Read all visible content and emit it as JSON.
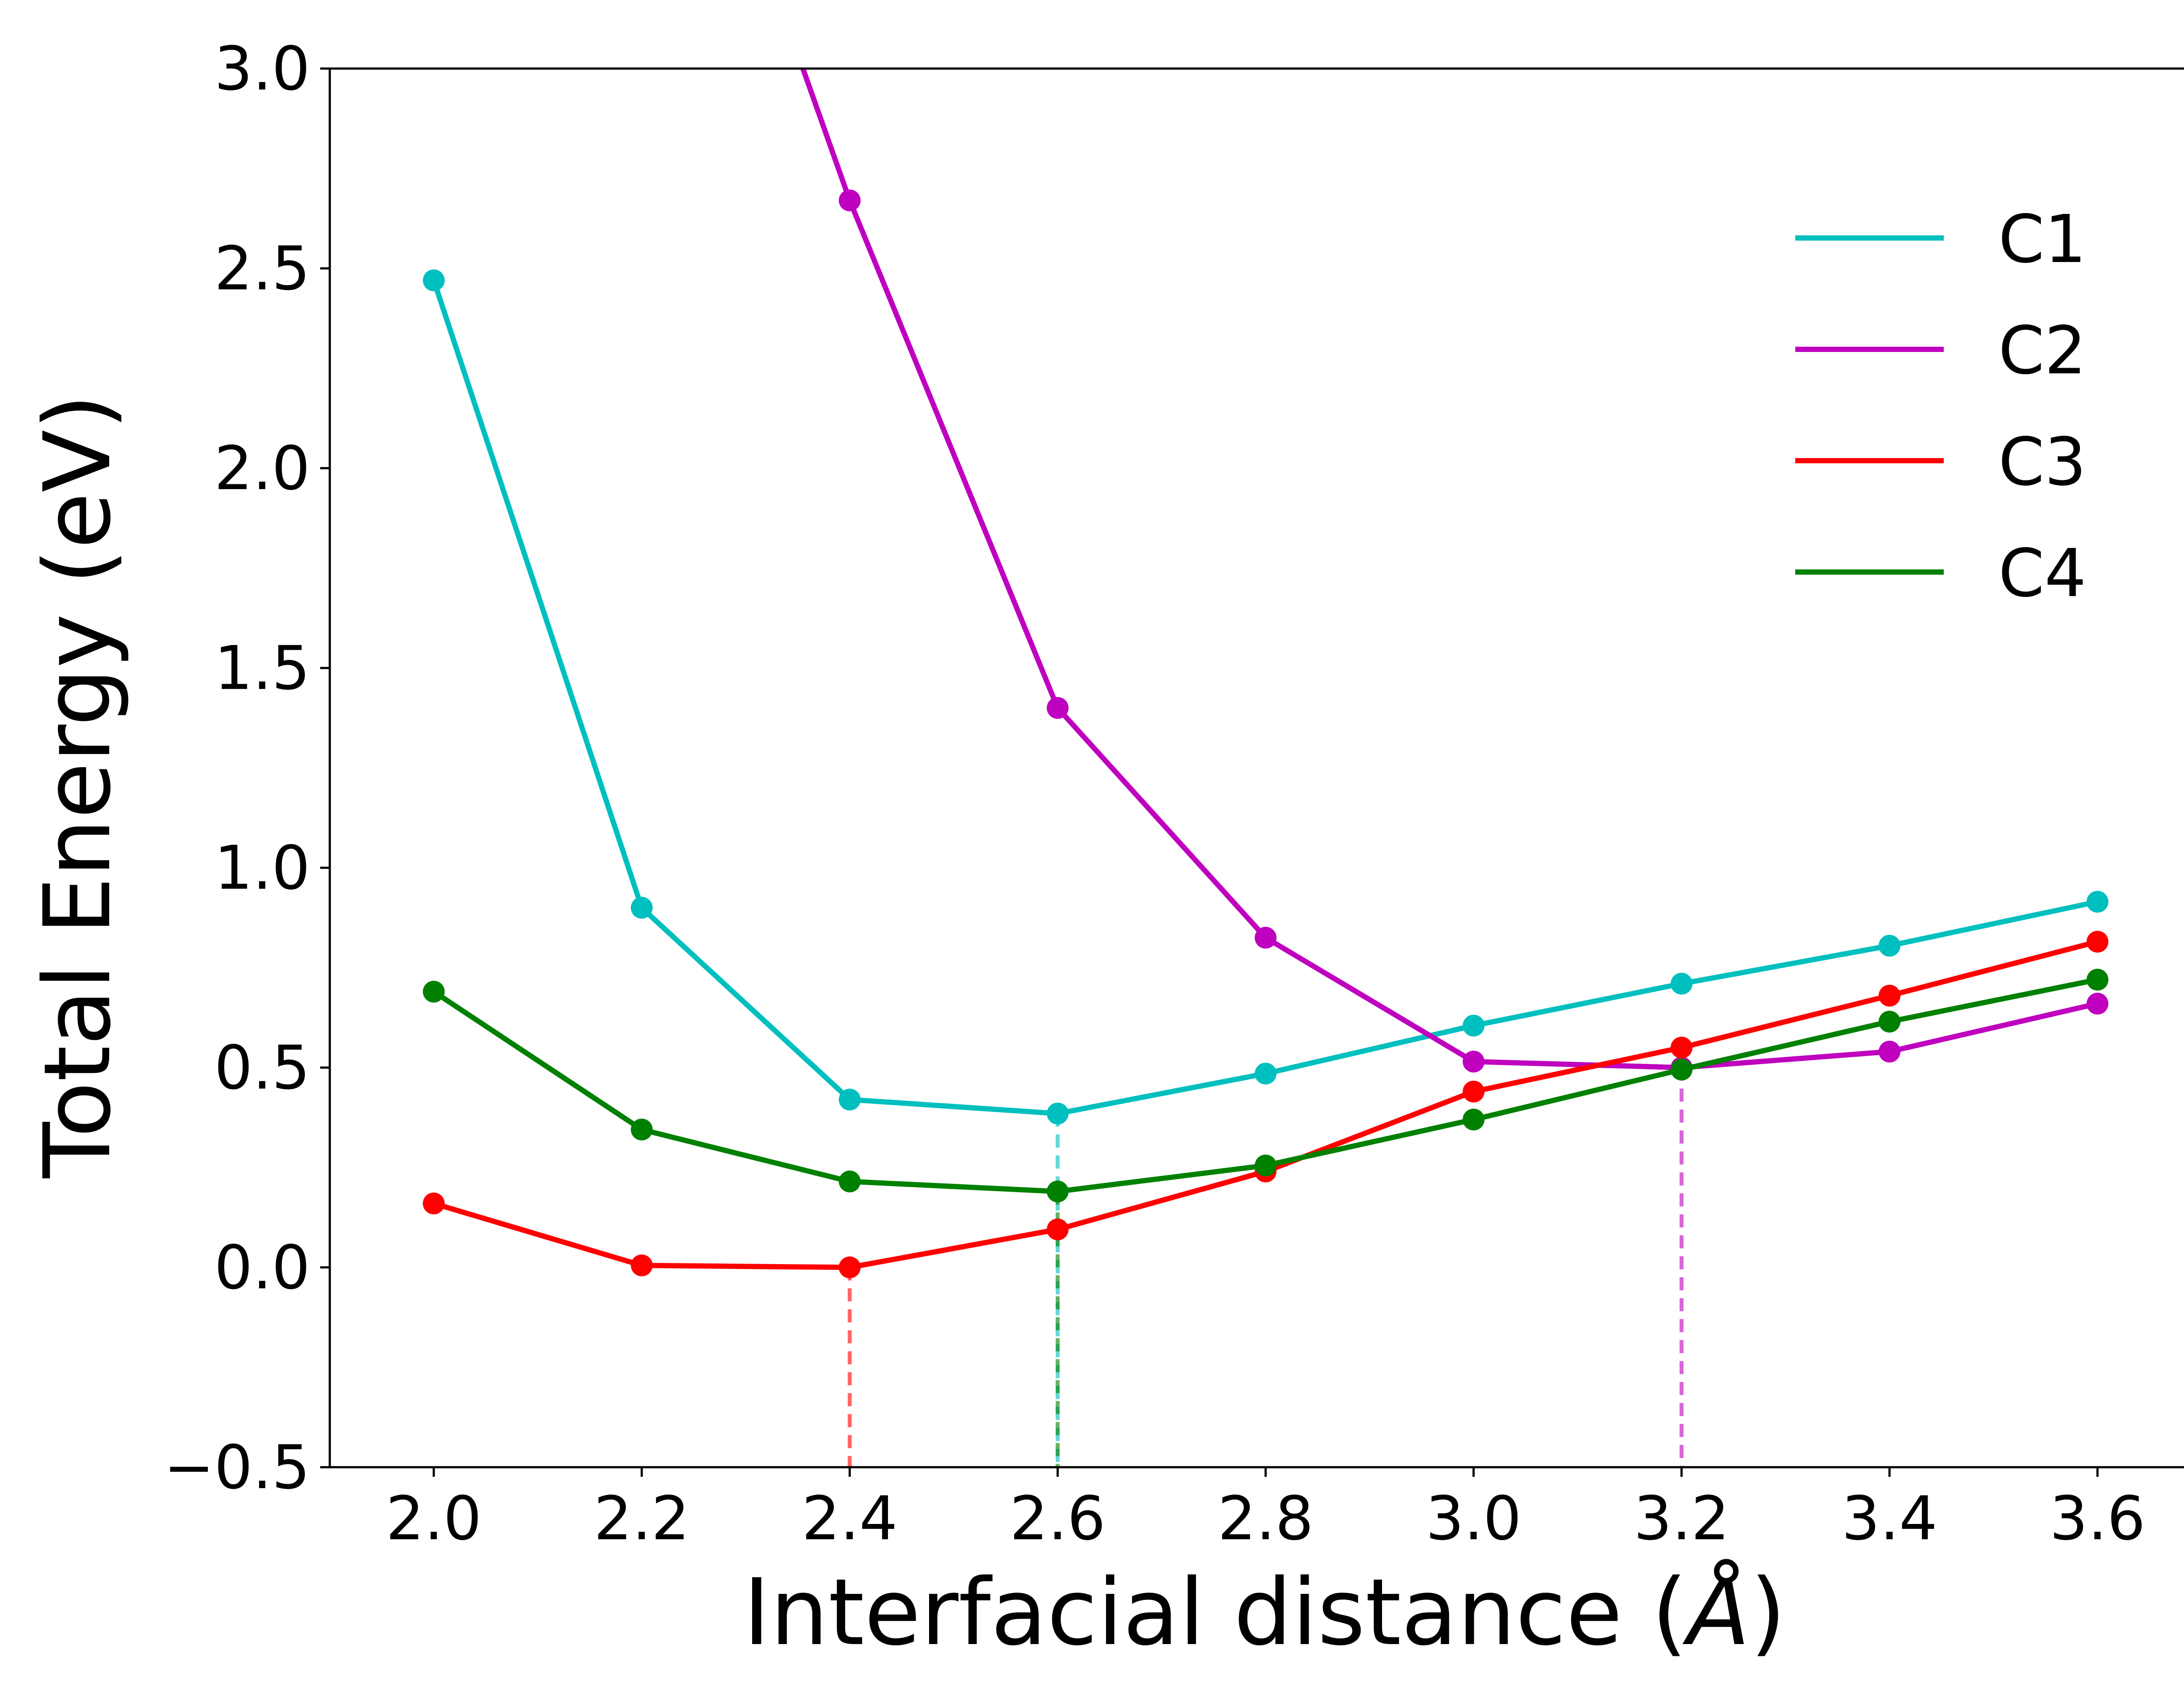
{
  "chart_data": {
    "type": "line",
    "title": "",
    "xlabel": "Interfacial distance (Å)",
    "xlabel_text": "Interfacial distance (",
    "xlabel_unit": "Å",
    "xlabel_close": ")",
    "ylabel": "Total Energy (eV)",
    "xlim": [
      1.9,
      3.7
    ],
    "ylim": [
      -0.5,
      3.0
    ],
    "xticks": [
      2.0,
      2.2,
      2.4,
      2.6,
      2.8,
      3.0,
      3.2,
      3.4,
      3.6
    ],
    "xtick_labels": [
      "2.0",
      "2.2",
      "2.4",
      "2.6",
      "2.8",
      "3.0",
      "3.2",
      "3.4",
      "3.6"
    ],
    "yticks": [
      -0.5,
      0.0,
      0.5,
      1.0,
      1.5,
      2.0,
      2.5,
      3.0
    ],
    "ytick_labels": [
      "−0.5",
      "0.0",
      "0.5",
      "1.0",
      "1.5",
      "2.0",
      "2.5",
      "3.0"
    ],
    "grid": false,
    "legend_position": "top-right",
    "x": [
      2.0,
      2.2,
      2.4,
      2.6,
      2.8,
      3.0,
      3.2,
      3.4,
      3.6
    ],
    "series": [
      {
        "name": "C1",
        "color": "#00bfbf",
        "x": [
          2.0,
          2.2,
          2.4,
          2.6,
          2.8,
          3.0,
          3.2,
          3.4,
          3.6
        ],
        "values": [
          2.47,
          0.9,
          0.42,
          0.385,
          0.485,
          0.605,
          0.71,
          0.805,
          0.915
        ]
      },
      {
        "name": "C2",
        "color": "#bf00bf",
        "x": [
          2.4,
          2.6,
          2.8,
          3.0,
          3.2,
          3.4,
          3.6
        ],
        "values": [
          2.67,
          1.4,
          0.825,
          0.515,
          0.5,
          0.54,
          0.66
        ],
        "line_from": {
          "x": 2.355,
          "y": 3.0
        }
      },
      {
        "name": "C3",
        "color": "#ff0000",
        "x": [
          2.0,
          2.2,
          2.4,
          2.6,
          2.8,
          3.0,
          3.2,
          3.4,
          3.6
        ],
        "values": [
          0.16,
          0.005,
          0.0,
          0.095,
          0.24,
          0.44,
          0.55,
          0.68,
          0.815
        ]
      },
      {
        "name": "C4",
        "color": "#008000",
        "x": [
          2.0,
          2.2,
          2.4,
          2.6,
          2.8,
          3.0,
          3.2,
          3.4,
          3.6
        ],
        "values": [
          0.69,
          0.345,
          0.215,
          0.19,
          0.255,
          0.37,
          0.495,
          0.615,
          0.72
        ]
      }
    ],
    "minimum_markers": [
      {
        "series": "C1",
        "x": 2.6,
        "y": 0.385,
        "color": "#00bfbf"
      },
      {
        "series": "C2",
        "x": 3.2,
        "y": 0.5,
        "color": "#bf00bf"
      },
      {
        "series": "C3",
        "x": 2.4,
        "y": 0.0,
        "color": "#ff0000"
      },
      {
        "series": "C4",
        "x": 2.6,
        "y": 0.19,
        "color": "#008000"
      }
    ]
  }
}
